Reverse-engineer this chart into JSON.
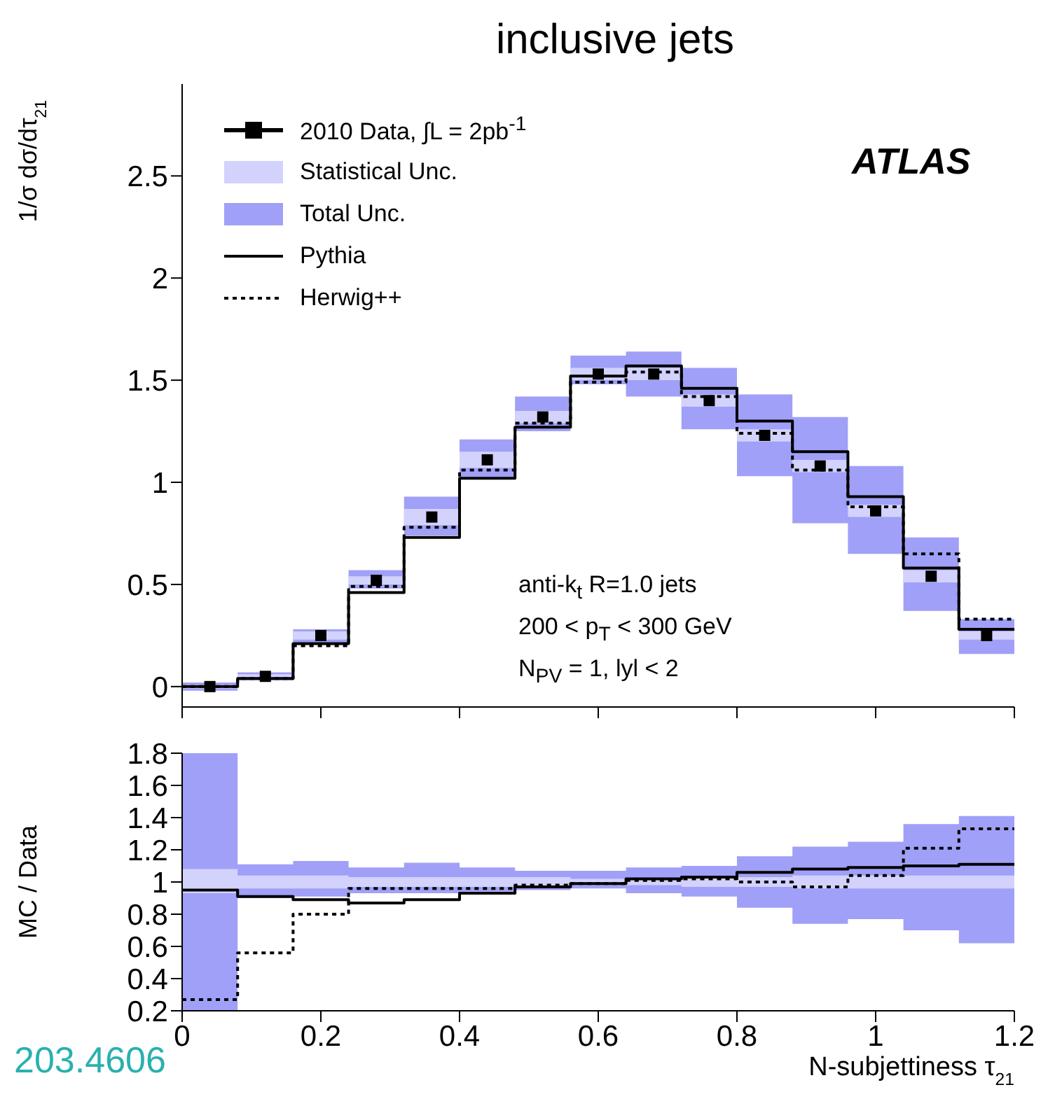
{
  "chart_data": [
    {
      "type": "step",
      "title": "inclusive jets",
      "ylabel": "1/σ dσ/dτ$_{21}$",
      "x": [
        0,
        0.08,
        0.16,
        0.24,
        0.32,
        0.4,
        0.48,
        0.56,
        0.64,
        0.72,
        0.8,
        0.88,
        0.96,
        1.04,
        1.12,
        1.2
      ],
      "xlim": [
        0,
        1.2
      ],
      "xticks": [
        0,
        0.2,
        0.4,
        0.6,
        0.8,
        1,
        1.2
      ],
      "ylim": [
        -0.1,
        2.95
      ],
      "yticks": [
        0,
        0.5,
        1,
        1.5,
        2,
        2.5
      ],
      "tick_labels": "y",
      "legend": "top left",
      "grid": false,
      "annotations": [
        "ATLAS",
        "anti-k$_{t}$ R=1.0 jets",
        "200 < p$_{T}$ < 300 GeV",
        "N$_{PV}$ = 1, lyl < 2"
      ],
      "series": [
        {
          "name": "2010 Data, ∫L = 2pb$^{-1}$",
          "type": "scatter",
          "color": "#000000",
          "marker": "square",
          "x": [
            0.04,
            0.12,
            0.2,
            0.28,
            0.36,
            0.44,
            0.52,
            0.6,
            0.68,
            0.76,
            0.84,
            0.92,
            1.0,
            1.08,
            1.16
          ],
          "values": [
            0.0,
            0.05,
            0.25,
            0.52,
            0.83,
            1.11,
            1.32,
            1.53,
            1.53,
            1.4,
            1.23,
            1.08,
            0.86,
            0.54,
            0.25
          ]
        },
        {
          "name": "Statistical Unc.",
          "type": "area",
          "color": "#d2d2fc",
          "values": [
            null,
            null,
            null,
            null,
            null,
            null,
            null,
            null,
            null,
            null,
            null,
            null,
            null,
            null,
            null,
            null
          ],
          "lower": [
            -0.01,
            0.04,
            0.23,
            0.5,
            0.79,
            1.07,
            1.29,
            1.5,
            1.5,
            1.37,
            1.2,
            1.05,
            0.83,
            0.51,
            0.23,
            0.23
          ],
          "upper": [
            0.01,
            0.06,
            0.27,
            0.54,
            0.87,
            1.15,
            1.35,
            1.56,
            1.56,
            1.43,
            1.26,
            1.11,
            0.89,
            0.57,
            0.27,
            0.27
          ]
        },
        {
          "name": "Total Unc.",
          "type": "area",
          "color": "#a0a0f8",
          "values": [
            null,
            null,
            null,
            null,
            null,
            null,
            null,
            null,
            null,
            null,
            null,
            null,
            null,
            null,
            null,
            null
          ],
          "lower": [
            -0.02,
            0.03,
            0.21,
            0.48,
            0.74,
            1.02,
            1.25,
            1.48,
            1.42,
            1.26,
            1.03,
            0.8,
            0.65,
            0.37,
            0.16,
            0.16
          ],
          "upper": [
            0.02,
            0.07,
            0.28,
            0.57,
            0.93,
            1.21,
            1.42,
            1.62,
            1.64,
            1.56,
            1.43,
            1.32,
            1.08,
            0.73,
            0.33,
            0.33
          ]
        },
        {
          "name": "Pythia",
          "color": "#000000",
          "line_style": "solid",
          "values": [
            0.0,
            0.04,
            0.21,
            0.46,
            0.73,
            1.02,
            1.27,
            1.52,
            1.57,
            1.46,
            1.3,
            1.15,
            0.93,
            0.58,
            0.28,
            0.28
          ]
        },
        {
          "name": "Herwig++",
          "color": "#000000",
          "line_style": "dotted",
          "values": [
            0.0,
            0.04,
            0.2,
            0.49,
            0.78,
            1.06,
            1.29,
            1.49,
            1.54,
            1.42,
            1.24,
            1.06,
            0.88,
            0.65,
            0.33,
            0.33
          ]
        }
      ]
    },
    {
      "type": "step",
      "xlabel": "N-subjettiness τ$_{21}$",
      "ylabel": "MC / Data",
      "x": [
        0,
        0.08,
        0.16,
        0.24,
        0.32,
        0.4,
        0.48,
        0.56,
        0.64,
        0.72,
        0.8,
        0.88,
        0.96,
        1.04,
        1.12,
        1.2
      ],
      "xlim": [
        0,
        1.2
      ],
      "xticks": [
        0,
        0.2,
        0.4,
        0.6,
        0.8,
        1,
        1.2
      ],
      "ylim": [
        0.2,
        1.8
      ],
      "yticks": [
        0.2,
        0.4,
        0.6,
        0.8,
        1,
        1.2,
        1.4,
        1.6,
        1.8
      ],
      "grid": false,
      "annotations": [
        "203.4606"
      ],
      "series": [
        {
          "type": "area",
          "color": "#d2d2fc",
          "values": [
            null,
            null,
            null,
            null,
            null,
            null,
            null,
            null,
            null,
            null,
            null,
            null,
            null,
            null,
            null,
            null
          ],
          "lower": [
            0.93,
            0.96,
            0.96,
            0.97,
            0.97,
            0.97,
            0.97,
            0.98,
            0.98,
            0.97,
            0.97,
            0.96,
            0.96,
            0.96,
            0.96,
            0.96
          ],
          "upper": [
            1.08,
            1.04,
            1.04,
            1.03,
            1.03,
            1.03,
            1.03,
            1.02,
            1.02,
            1.03,
            1.03,
            1.04,
            1.04,
            1.04,
            1.04,
            1.04
          ]
        },
        {
          "type": "area",
          "color": "#a0a0f8",
          "values": [
            null,
            null,
            null,
            null,
            null,
            null,
            null,
            null,
            null,
            null,
            null,
            null,
            null,
            null,
            null,
            null
          ],
          "lower": [
            0.2,
            0.9,
            0.91,
            0.93,
            0.93,
            0.94,
            0.95,
            0.96,
            0.93,
            0.91,
            0.84,
            0.74,
            0.77,
            0.7,
            0.62,
            0.62
          ],
          "upper": [
            1.8,
            1.11,
            1.13,
            1.09,
            1.12,
            1.09,
            1.07,
            1.07,
            1.09,
            1.1,
            1.16,
            1.22,
            1.25,
            1.36,
            1.41,
            1.41
          ]
        },
        {
          "color": "#000000",
          "line_style": "solid",
          "values": [
            0.95,
            0.91,
            0.89,
            0.87,
            0.89,
            0.93,
            0.97,
            0.99,
            1.02,
            1.03,
            1.06,
            1.08,
            1.09,
            1.1,
            1.11,
            1.11
          ]
        },
        {
          "color": "#000000",
          "line_style": "dotted",
          "values": [
            0.27,
            0.56,
            0.8,
            0.96,
            0.96,
            0.96,
            0.98,
            0.99,
            1.01,
            1.02,
            1.0,
            0.97,
            1.04,
            1.21,
            1.33,
            1.33
          ]
        }
      ]
    }
  ]
}
